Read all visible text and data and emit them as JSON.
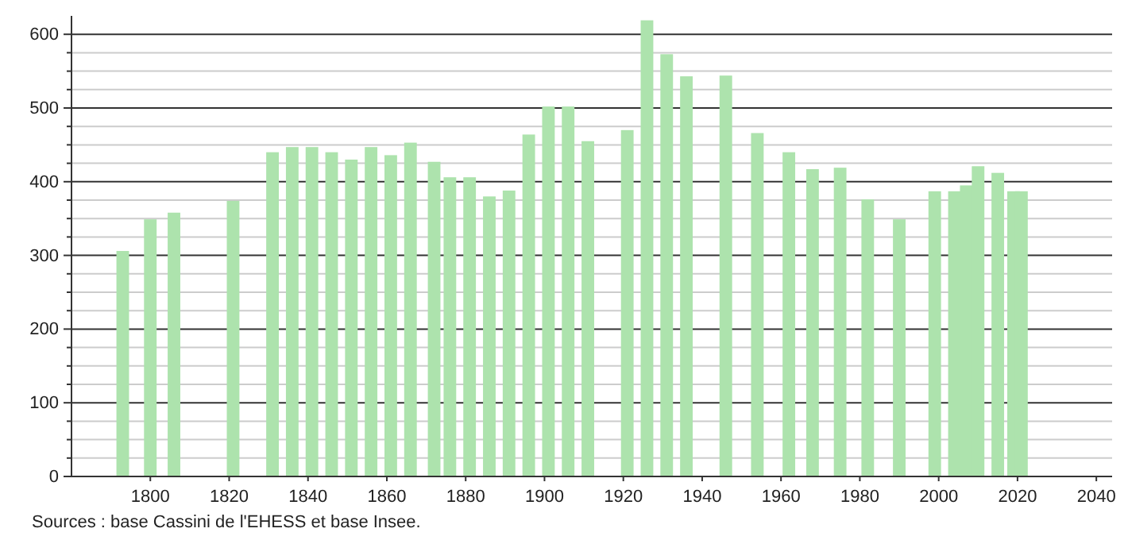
{
  "chart_data": {
    "type": "bar",
    "color": "#ade3ad",
    "x": [
      1793,
      1800,
      1806,
      1821,
      1831,
      1836,
      1841,
      1846,
      1851,
      1856,
      1861,
      1866,
      1872,
      1876,
      1881,
      1886,
      1891,
      1896,
      1901,
      1906,
      1911,
      1921,
      1926,
      1931,
      1936,
      1946,
      1954,
      1962,
      1968,
      1975,
      1982,
      1990,
      1999,
      2004,
      2007,
      2010,
      2015,
      2019,
      2021
    ],
    "values": [
      306,
      349,
      358,
      374,
      440,
      447,
      447,
      440,
      430,
      447,
      436,
      453,
      427,
      406,
      406,
      380,
      388,
      464,
      502,
      502,
      455,
      470,
      619,
      573,
      543,
      544,
      466,
      440,
      417,
      419,
      376,
      349,
      387,
      387,
      395,
      421,
      412,
      387,
      387
    ],
    "xlim": [
      1780,
      2044
    ],
    "xticks": [
      1800,
      1820,
      1840,
      1860,
      1880,
      1900,
      1920,
      1940,
      1960,
      1980,
      2000,
      2020,
      2040
    ],
    "ylim": [
      0,
      625
    ],
    "yticks": [
      0,
      {
        "value": 25,
        "label": null
      },
      {
        "value": 50,
        "label": null
      },
      {
        "value": 75,
        "label": null
      },
      100,
      {
        "value": 125,
        "label": null
      },
      {
        "value": 150,
        "label": null
      },
      {
        "value": 175,
        "label": null
      },
      200,
      {
        "value": 225,
        "label": null
      },
      {
        "value": 250,
        "label": null
      },
      {
        "value": 275,
        "label": null
      },
      300,
      {
        "value": 325,
        "label": null
      },
      {
        "value": 350,
        "label": null
      },
      {
        "value": 375,
        "label": null
      },
      400,
      {
        "value": 425,
        "label": null
      },
      {
        "value": 450,
        "label": null
      },
      {
        "value": 475,
        "label": null
      },
      500,
      {
        "value": 525,
        "label": null
      },
      {
        "value": 550,
        "label": null
      },
      {
        "value": 575,
        "label": null
      },
      600
    ],
    "grid": "y",
    "annotations": [
      "Sources : base Cassini de l'EHESS et base Insee."
    ]
  }
}
